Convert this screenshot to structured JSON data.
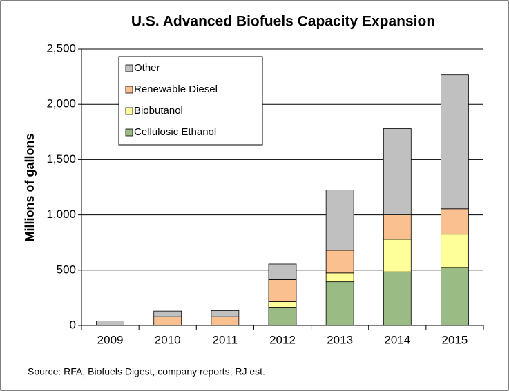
{
  "chart_data": {
    "type": "stacked_bar",
    "title": "U.S. Advanced Biofuels Capacity Expansion",
    "y_label": "Millions of gallons",
    "source": "Source: RFA, Biofuels Digest, company reports, RJ est.",
    "categories": [
      "2009",
      "2010",
      "2011",
      "2012",
      "2013",
      "2014",
      "2015"
    ],
    "series": [
      {
        "name": "Cellulosic Ethanol",
        "color": "#9bbb84",
        "values": [
          0,
          0,
          0,
          165,
          395,
          485,
          525
        ]
      },
      {
        "name": "Biobutanol",
        "color": "#ffff99",
        "values": [
          0,
          0,
          0,
          50,
          80,
          295,
          300
        ]
      },
      {
        "name": "Renewable Diesel",
        "color": "#fac090",
        "values": [
          0,
          80,
          80,
          200,
          205,
          220,
          230
        ]
      },
      {
        "name": "Other",
        "color": "#c0c0c0",
        "values": [
          40,
          50,
          55,
          140,
          545,
          780,
          1210
        ]
      }
    ],
    "ylim": [
      0,
      2500
    ],
    "yticks": [
      0,
      500,
      {
        "value": 1000,
        "label": "1,000"
      },
      {
        "value": 1500,
        "label": "1,500"
      },
      {
        "value": 2000,
        "label": "2,000"
      },
      {
        "value": 2500,
        "label": "2,500"
      }
    ],
    "grid": true,
    "legend": "top-left"
  }
}
